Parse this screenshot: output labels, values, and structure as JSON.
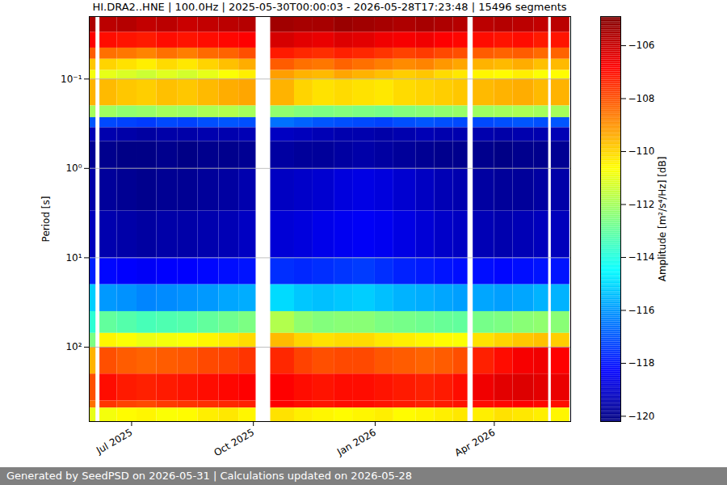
{
  "chart_data": {
    "type": "heatmap",
    "title": "HI.DRA2..HNE | 100.0Hz | 2025-05-30T00:00:03 - 2026-05-28T17:23:48 | 15496 segments",
    "caption": "Generated by SeedPSD on 2026-05-31 | Calculations updated on 2026-05-28",
    "y_label": "Period [s]",
    "colorbar_label": "Amplitude [m²/s⁴/Hz] [dB]",
    "color": "jet",
    "log": "y",
    "grid": true,
    "xlim": [
      "2025-05-30T00:00:03",
      "2026-05-28T17:23:48"
    ],
    "xticks": [
      {
        "value": "2025-07-01",
        "label": "Jul 2025"
      },
      {
        "value": "2025-10-01",
        "label": "Oct 2025"
      },
      {
        "value": "2026-01-01",
        "label": "Jan 2026"
      },
      {
        "value": "2026-04-01",
        "label": "Apr 2026"
      }
    ],
    "ylim": [
      0.02,
      680
    ],
    "yticks": [
      {
        "value": 0.1,
        "label": "10⁻¹"
      },
      {
        "value": 1,
        "label": "10⁰"
      },
      {
        "value": 10,
        "label": "10¹"
      },
      {
        "value": 100,
        "label": "10²"
      }
    ],
    "color_range": [
      -120.2,
      -104.9
    ],
    "color_ticks": [
      -106,
      -108,
      -110,
      -112,
      -114,
      -116,
      -118,
      -120
    ],
    "time_edges": [
      "2025-05-30",
      "2025-06-04",
      "2025-06-07",
      "2025-06-20",
      "2025-07-05",
      "2025-07-20",
      "2025-08-05",
      "2025-08-20",
      "2025-09-05",
      "2025-09-20",
      "2025-10-03",
      "2025-10-14",
      "2025-11-01",
      "2025-11-15",
      "2025-12-01",
      "2025-12-15",
      "2026-01-01",
      "2026-01-15",
      "2026-02-01",
      "2026-02-15",
      "2026-03-01",
      "2026-03-12",
      "2026-03-16",
      "2026-04-01",
      "2026-04-15",
      "2026-05-01",
      "2026-05-12",
      "2026-05-14",
      "2026-05-28"
    ],
    "period_edges": [
      0.02,
      0.03,
      0.045,
      0.06,
      0.08,
      0.1,
      0.2,
      0.27,
      0.35,
      0.5,
      1,
      3,
      10,
      20,
      40,
      70,
      100,
      200,
      400,
      480,
      680
    ],
    "values": [
      [
        -105.6,
        null,
        -105.8,
        -105.7,
        -105.9,
        -105.8,
        -106,
        -105.9,
        -105.8,
        -105.7,
        null,
        -105.4,
        -105.5,
        -105.5,
        -105.3,
        -105.4,
        -105.5,
        -105.6,
        -105.5,
        -105.6,
        -105.7,
        null,
        -105.8,
        -105.7,
        -105.8,
        -105.9,
        null,
        -105.8
      ],
      [
        -106.8,
        null,
        -107,
        -107.1,
        -107.2,
        -107,
        -107.1,
        -107,
        -106.9,
        -106.8,
        null,
        -106.2,
        -106.4,
        -106.5,
        -106.3,
        -106.4,
        -106.6,
        -106.7,
        -106.6,
        -106.8,
        -106.9,
        null,
        -107,
        -107.1,
        -107,
        -107.2,
        null,
        -107.1
      ],
      [
        -108.2,
        null,
        -108.5,
        -108.6,
        -108.8,
        -108.5,
        -108.7,
        -108.4,
        -108.3,
        -108,
        null,
        -107.2,
        -107.4,
        -107.5,
        -107.3,
        -107.4,
        -107.6,
        -107.8,
        -107.7,
        -107.9,
        -108,
        null,
        -108.2,
        -108.3,
        -108.2,
        -108.4,
        null,
        -108.3
      ],
      [
        -109.8,
        null,
        -110,
        -110.2,
        -110.4,
        -110.1,
        -110.3,
        -110,
        -109.7,
        -109.4,
        null,
        -108.2,
        -108.5,
        -108.6,
        -108.3,
        -108.5,
        -108.7,
        -108.9,
        -108.8,
        -109.1,
        -109.3,
        null,
        -109.5,
        -109.6,
        -109.4,
        -109.7,
        null,
        -109.6
      ],
      [
        -110.8,
        null,
        -111,
        -111.2,
        -111.4,
        -111.1,
        -111.3,
        -111,
        -110.7,
        -110.4,
        null,
        -109.2,
        -109.5,
        -109.6,
        -109.3,
        -109.5,
        -109.7,
        -109.9,
        -109.8,
        -110.1,
        -110.3,
        null,
        -110.5,
        -110.6,
        -110.4,
        -110.7,
        null,
        -110.6
      ],
      [
        -109.5,
        null,
        -109.6,
        -109.8,
        -109.9,
        -109.7,
        -109.8,
        -109.6,
        -109.4,
        -109.3,
        null,
        -109.5,
        -110,
        -110.2,
        -110.1,
        -110.2,
        -110.3,
        -110.1,
        -110,
        -109.9,
        -109.8,
        null,
        -109.6,
        -109.5,
        -109.4,
        -109.6,
        null,
        -109.5
      ],
      [
        -112,
        null,
        -112.1,
        -112.3,
        -112.2,
        -112,
        -112.1,
        -111.9,
        -111.8,
        -112,
        null,
        -112.3,
        -112.5,
        -112.6,
        -112.5,
        -112.6,
        -112.7,
        -112.5,
        -112.4,
        -112.3,
        -112.2,
        null,
        -112.1,
        -112,
        -111.9,
        -112,
        null,
        -112
      ],
      [
        -117,
        null,
        -117.2,
        -117.3,
        -117.4,
        -117.2,
        -117.3,
        -117.1,
        -117,
        -117.1,
        null,
        -116.6,
        -116.8,
        -117,
        -117.1,
        -117.2,
        -117.3,
        -117.1,
        -117,
        -117.1,
        -117.2,
        null,
        -117.2,
        -117.1,
        -117,
        -117.1,
        null,
        -117
      ],
      [
        -119.4,
        null,
        -119.5,
        -119.6,
        -119.7,
        -119.6,
        -119.6,
        -119.5,
        -119.5,
        -119.4,
        null,
        -119.2,
        -119.3,
        -119.4,
        -119.5,
        -119.5,
        -119.6,
        -119.5,
        -119.4,
        -119.5,
        -119.5,
        null,
        -119.5,
        -119.6,
        -119.5,
        -119.5,
        null,
        -119.4
      ],
      [
        -119.9,
        null,
        -120,
        -120.1,
        -120.1,
        -120,
        -120.1,
        -120,
        -120,
        -119.9,
        null,
        -119.7,
        -119.8,
        -119.8,
        -119.7,
        -119.6,
        -119.7,
        -119.8,
        -119.9,
        -120,
        -120,
        null,
        -120,
        -120.1,
        -120,
        -120,
        null,
        -119.9
      ],
      [
        -119.6,
        null,
        -119.8,
        -119.9,
        -120,
        -119.9,
        -119.9,
        -119.8,
        -119.7,
        -119.5,
        null,
        -119.2,
        -119.1,
        -119,
        -118.8,
        -118.7,
        -118.8,
        -119,
        -119.2,
        -119.4,
        -119.5,
        null,
        -119.7,
        -119.8,
        -119.8,
        -119.7,
        null,
        -119.6
      ],
      [
        -119.3,
        null,
        -119.5,
        -119.6,
        -119.7,
        -119.6,
        -119.6,
        -119.5,
        -119.4,
        -119.2,
        null,
        -118.9,
        -118.8,
        -118.6,
        -118.5,
        -118.4,
        -118.5,
        -118.7,
        -118.9,
        -119.1,
        -119.2,
        null,
        -119.4,
        -119.5,
        -119.4,
        -119.3,
        null,
        -119.3
      ],
      [
        -117.8,
        null,
        -118.2,
        -118.3,
        -118.4,
        -118.3,
        -118.3,
        -118.2,
        -118.1,
        -118,
        null,
        -117.6,
        -117.7,
        -117.6,
        -117.5,
        -117.4,
        -117.6,
        -117.8,
        -117.9,
        -118,
        -118.1,
        null,
        -118.1,
        -118.2,
        -118.1,
        -118,
        null,
        -118
      ],
      [
        -115.2,
        null,
        -116,
        -116.1,
        -116.3,
        -116.2,
        -116.1,
        -116,
        -115.8,
        -115.7,
        null,
        -115,
        -115.3,
        -115.4,
        -115.3,
        -115.2,
        -115.4,
        -115.6,
        -115.7,
        -115.8,
        -115.9,
        null,
        -115.8,
        -115.9,
        -115.8,
        -115.6,
        null,
        -115.6
      ],
      [
        -113.8,
        null,
        -113,
        -113.2,
        -113.4,
        -113.3,
        -113.2,
        -113,
        -112.8,
        -112.6,
        null,
        -111.8,
        -112.3,
        -112.5,
        -112.4,
        -112.4,
        -112.6,
        -112.7,
        -112.8,
        -112.9,
        -113,
        null,
        -112.7,
        -112.6,
        -112.4,
        -112.3,
        null,
        -112.4
      ],
      [
        -112.6,
        null,
        -110.5,
        -110.7,
        -110.9,
        -110.8,
        -110.7,
        -110.5,
        -110.3,
        -110.1,
        null,
        -109.6,
        -110,
        -110.2,
        -110.1,
        -110.1,
        -110.3,
        -110.4,
        -110.5,
        -110.6,
        -110.7,
        null,
        -110.2,
        -110,
        -109.8,
        -109.7,
        null,
        -109.9
      ],
      [
        -109.5,
        null,
        -108,
        -108.2,
        -108.3,
        -108.2,
        -108.1,
        -107.9,
        -107.8,
        -107.6,
        null,
        -107.4,
        -107.8,
        -108,
        -107.9,
        -107.9,
        -108.1,
        -108.2,
        -108.3,
        -108.2,
        -108,
        null,
        -107.3,
        -107,
        -106.7,
        -106.6,
        null,
        -106.8
      ],
      [
        -108,
        null,
        -107,
        -107.2,
        -107.3,
        -107.2,
        -107.1,
        -107,
        -106.9,
        -106.8,
        null,
        -106.8,
        -107,
        -107.1,
        -107,
        -107,
        -107.1,
        -107.2,
        -107.3,
        -107.2,
        -107,
        null,
        -106.6,
        -106.4,
        -106.3,
        -106.4,
        null,
        -106.5
      ],
      [
        -108.5,
        null,
        -107.6,
        -107.8,
        -107.9,
        -107.7,
        -107.6,
        -107.5,
        -107.4,
        -107.3,
        null,
        -106.8,
        -107,
        -107.1,
        -107,
        -107,
        -107.1,
        -107.2,
        -107.3,
        -107.2,
        -107.1,
        null,
        -107,
        -106.9,
        -106.8,
        -106.9,
        null,
        -107
      ],
      [
        -111,
        null,
        -110.8,
        -110.6,
        -110.5,
        -110.7,
        -110.6,
        -110.4,
        -110.3,
        -110.5,
        null,
        -110.2,
        -110.4,
        -110.5,
        -110.6,
        -110.5,
        -110.4,
        -110.6,
        -110.5,
        -110.4,
        -110.3,
        null,
        -110.4,
        -110.2,
        -110.3,
        -110.4,
        null,
        -110.5
      ]
    ]
  }
}
